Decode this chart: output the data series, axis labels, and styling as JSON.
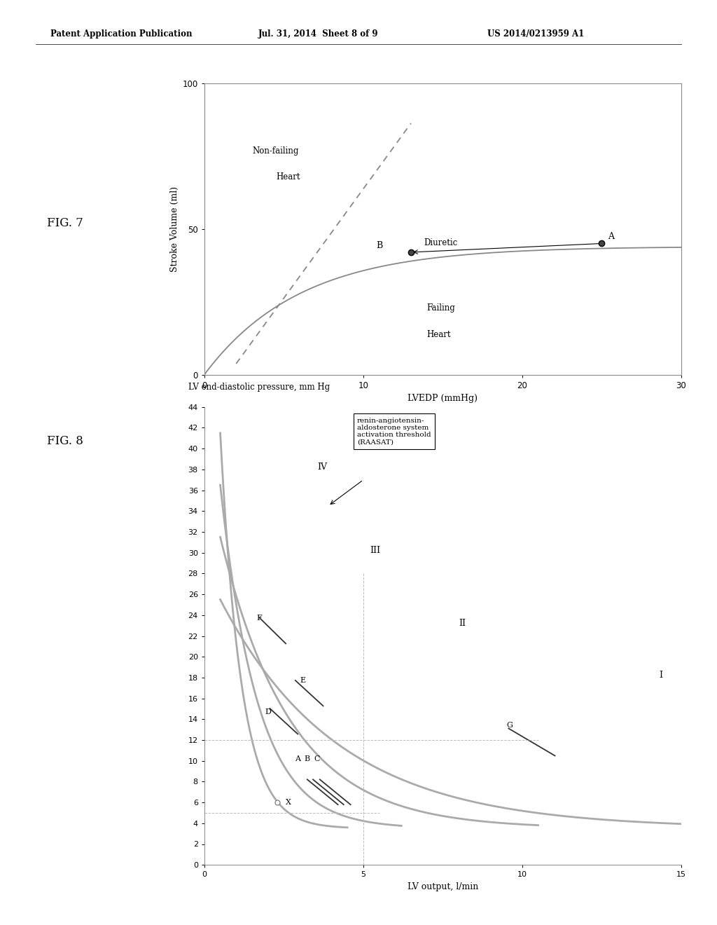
{
  "header_left": "Patent Application Publication",
  "header_mid": "Jul. 31, 2014  Sheet 8 of 9",
  "header_right": "US 2014/0213959 A1",
  "fig7": {
    "xlabel": "LVEDP (mmHg)",
    "ylabel": "Stroke Volume (ml)",
    "xlim": [
      0,
      30
    ],
    "ylim": [
      0,
      100
    ],
    "xticks": [
      0,
      10,
      20,
      30
    ],
    "yticks": [
      0,
      50,
      100
    ],
    "point_A": [
      25,
      45
    ],
    "point_B": [
      13,
      42
    ]
  },
  "fig8": {
    "xlabel": "LV output, l/min",
    "xlim": [
      0,
      15
    ],
    "ylim": [
      0,
      44
    ],
    "xticks": [
      0,
      5,
      10,
      15
    ],
    "yticks": [
      0,
      2,
      4,
      6,
      8,
      10,
      12,
      14,
      16,
      18,
      20,
      22,
      24,
      26,
      28,
      30,
      32,
      34,
      36,
      38,
      40,
      42,
      44
    ],
    "hline_y": 12,
    "vline_x": 5,
    "hline2_y": 5
  }
}
